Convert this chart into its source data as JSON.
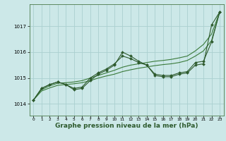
{
  "background_color": "#cce8e8",
  "grid_color": "#aad0d0",
  "line_color_dark": "#2d5a2d",
  "line_color_mid": "#3a7a3a",
  "xlabel": "Graphe pression niveau de la mer (hPa)",
  "xlabel_fontsize": 6.5,
  "ytick_labels": [
    "1014",
    "1015",
    "1016",
    "1017"
  ],
  "yticks": [
    1014,
    1015,
    1016,
    1017
  ],
  "ylim": [
    1013.55,
    1017.85
  ],
  "xlim": [
    -0.5,
    23.5
  ],
  "xticks": [
    0,
    1,
    2,
    3,
    4,
    5,
    6,
    7,
    8,
    9,
    10,
    11,
    12,
    13,
    14,
    15,
    16,
    17,
    18,
    19,
    20,
    21,
    22,
    23
  ],
  "series_main": [
    1014.15,
    1014.6,
    1014.75,
    1014.85,
    1014.75,
    1014.55,
    1014.6,
    1014.9,
    1015.15,
    1015.3,
    1015.5,
    1016.0,
    1015.85,
    1015.65,
    1015.5,
    1015.1,
    1015.05,
    1015.05,
    1015.15,
    1015.2,
    1015.5,
    1015.55,
    1017.05,
    1017.55
  ],
  "series_secondary": [
    1014.15,
    1014.6,
    1014.75,
    1014.85,
    1014.75,
    1014.6,
    1014.65,
    1015.0,
    1015.2,
    1015.35,
    1015.55,
    1015.85,
    1015.75,
    1015.6,
    1015.5,
    1015.15,
    1015.1,
    1015.1,
    1015.2,
    1015.25,
    1015.6,
    1015.65,
    1016.4,
    1017.55
  ],
  "series_trend1": [
    1014.15,
    1014.55,
    1014.7,
    1014.8,
    1014.82,
    1014.85,
    1014.9,
    1015.0,
    1015.1,
    1015.2,
    1015.3,
    1015.42,
    1015.5,
    1015.55,
    1015.6,
    1015.65,
    1015.68,
    1015.72,
    1015.78,
    1015.85,
    1016.05,
    1016.3,
    1016.7,
    1017.55
  ],
  "series_trend2": [
    1014.15,
    1014.5,
    1014.62,
    1014.72,
    1014.75,
    1014.78,
    1014.82,
    1014.9,
    1015.0,
    1015.08,
    1015.15,
    1015.25,
    1015.32,
    1015.38,
    1015.43,
    1015.48,
    1015.52,
    1015.55,
    1015.6,
    1015.68,
    1015.85,
    1016.05,
    1016.45,
    1017.55
  ]
}
